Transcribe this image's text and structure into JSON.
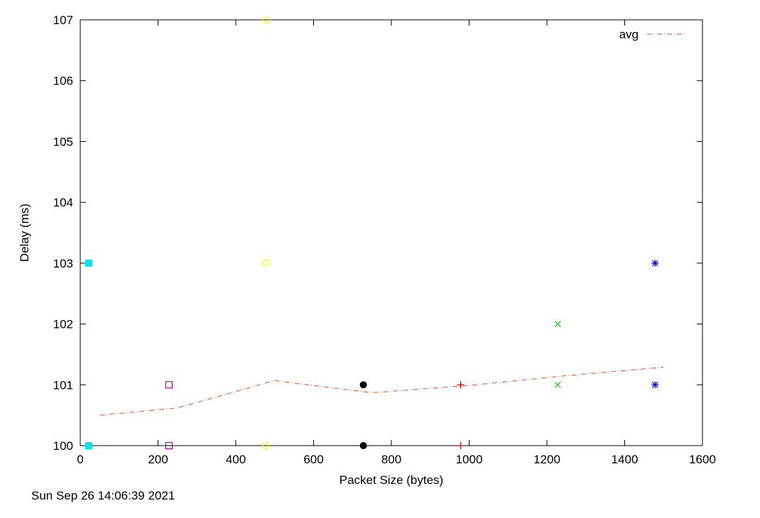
{
  "chart_data": {
    "type": "scatter",
    "title": "",
    "xlabel": "Packet Size (bytes)",
    "ylabel": "Delay (ms)",
    "xlim": [
      0,
      1600
    ],
    "ylim": [
      100,
      107
    ],
    "x_ticks": [
      0,
      200,
      400,
      600,
      800,
      1000,
      1200,
      1400,
      1600
    ],
    "y_ticks": [
      100,
      101,
      102,
      103,
      104,
      105,
      106,
      107
    ],
    "grid": false,
    "legend_position": "top-right",
    "series": [
      {
        "marker": "filled-square",
        "color": "#00e5ee",
        "x": [
          22,
          22
        ],
        "y": [
          100,
          103
        ]
      },
      {
        "marker": "open-square",
        "color": "#b000b0",
        "x": [
          228,
          228
        ],
        "y": [
          100,
          101
        ]
      },
      {
        "marker": "open-circle",
        "color": "#ffff00",
        "x": [
          478,
          478,
          478
        ],
        "y": [
          100,
          103,
          107
        ]
      },
      {
        "marker": "filled-circle",
        "color": "#000000",
        "x": [
          728,
          728
        ],
        "y": [
          100,
          101
        ]
      },
      {
        "marker": "plus",
        "color": "#e00000",
        "x": [
          978,
          978
        ],
        "y": [
          100,
          101
        ]
      },
      {
        "marker": "cross",
        "color": "#00dd00",
        "x": [
          1228,
          1228
        ],
        "y": [
          101,
          102
        ]
      },
      {
        "marker": "star",
        "color": "#0000cc",
        "x": [
          1478,
          1478
        ],
        "y": [
          101,
          103
        ]
      },
      {
        "name": "avg",
        "marker": "line",
        "color": "#e8502a",
        "dash": "dash-dot",
        "x": [
          50,
          250,
          500,
          750,
          1000,
          1250,
          1500
        ],
        "y": [
          100.5,
          100.62,
          101.07,
          100.87,
          100.99,
          101.15,
          101.29
        ]
      }
    ]
  },
  "footer": {
    "timestamp": "Sun Sep 26 14:06:39 2021"
  }
}
